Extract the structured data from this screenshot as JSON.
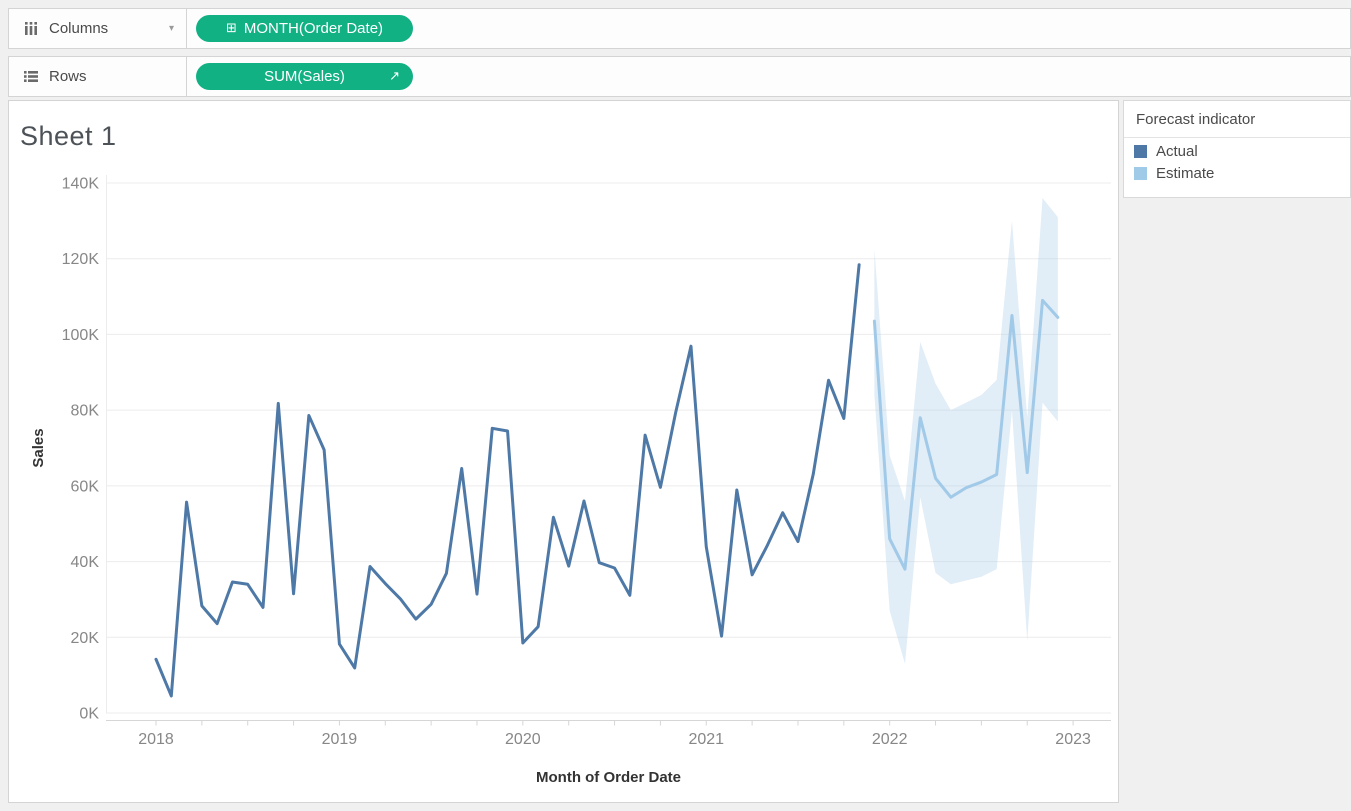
{
  "shelves": {
    "columns": {
      "label": "Columns",
      "pill": "MONTH(Order Date)",
      "expand_icon_glyph": "⊞",
      "caret_glyph": "▾"
    },
    "rows": {
      "label": "Rows",
      "pill": "SUM(Sales)",
      "forecast_icon_glyph": "↗"
    }
  },
  "sheet": {
    "title": "Sheet 1"
  },
  "legend": {
    "title": "Forecast indicator",
    "items": [
      {
        "label": "Actual",
        "color": "#4e79a7"
      },
      {
        "label": "Estimate",
        "color": "#a0cbe8"
      }
    ]
  },
  "chart_data": {
    "type": "line",
    "title": "Sheet 1",
    "xlabel": "Month of Order Date",
    "ylabel": "Sales",
    "x_ticks": [
      "2018",
      "2019",
      "2020",
      "2021",
      "2022",
      "2023"
    ],
    "y_ticks": [
      "0K",
      "20K",
      "40K",
      "60K",
      "80K",
      "100K",
      "120K",
      "140K"
    ],
    "ylim": [
      0,
      140
    ],
    "units": "thousands (K) of Sales",
    "grid": "horizontal",
    "legend_position": "right",
    "x_start": "2018-01",
    "x_tick_month_interval": 3,
    "series": [
      {
        "name": "Actual",
        "color": "#4e79a7",
        "start_month_index": 0,
        "range": "Jan 2018 - Nov 2021",
        "values": [
          14.2,
          4.5,
          55.7,
          28.3,
          23.6,
          34.6,
          34.0,
          27.9,
          81.8,
          31.5,
          78.6,
          69.5,
          18.2,
          11.9,
          38.7,
          34.2,
          30.1,
          24.8,
          28.7,
          36.9,
          64.6,
          31.4,
          75.2,
          74.5,
          18.5,
          22.8,
          51.7,
          38.8,
          56.0,
          39.7,
          38.3,
          31.1,
          73.4,
          59.6,
          79.4,
          96.9,
          43.9,
          20.3,
          58.9,
          36.5,
          44.3,
          52.9,
          45.3,
          63.1,
          87.9,
          77.8,
          118.4
        ]
      },
      {
        "name": "Estimate",
        "color": "#a1c9e8",
        "start_month_index": 47,
        "range": "Dec 2021 - Dec 2022",
        "values": [
          103.5,
          46.0,
          38.0,
          78.0,
          62.0,
          57.0,
          59.5,
          61.0,
          63.0,
          105.0,
          63.5,
          109.0,
          104.5
        ]
      }
    ],
    "forecast_band": {
      "name": "Estimate confidence band",
      "color": "#a9cce8",
      "start_month_index": 47,
      "lower": [
        84,
        27,
        13,
        57,
        37,
        34,
        35,
        36,
        38,
        80,
        19,
        82,
        77
      ],
      "upper": [
        122.5,
        68,
        56,
        98,
        87,
        80,
        82,
        84,
        88,
        130,
        78,
        136,
        131
      ]
    }
  },
  "colors": {
    "pill_green": "#12b184",
    "gridline": "#ececec",
    "axis_line": "#d6d6d6",
    "tick_label": "#878787",
    "axis_title": "#333333",
    "band_opacity": 0.35
  }
}
